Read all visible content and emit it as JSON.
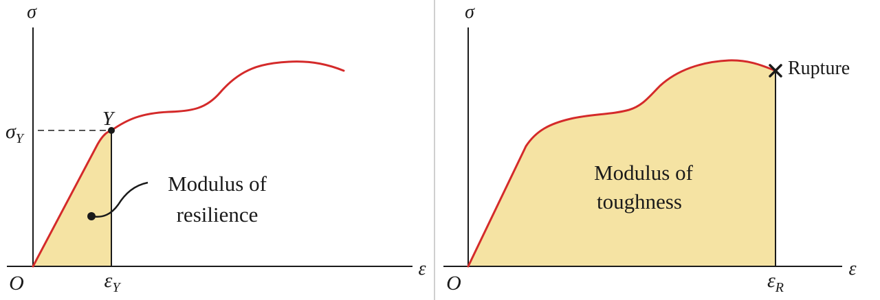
{
  "colors": {
    "curve": "#d42a2a",
    "fill": "#f5e3a3",
    "ink": "#1a1a1a",
    "divider": "#cfcfcf"
  },
  "left_panel": {
    "y_axis_label": "σ",
    "x_axis_label": "ε",
    "origin_label": "O",
    "yield_point_label": "Y",
    "yield_stress_label": {
      "base": "σ",
      "sub": "Y"
    },
    "yield_strain_label": {
      "base": "ε",
      "sub": "Y"
    },
    "area_label_line1": "Modulus of",
    "area_label_line2": "resilience"
  },
  "right_panel": {
    "y_axis_label": "σ",
    "x_axis_label": "ε",
    "origin_label": "O",
    "rupture_label": "Rupture",
    "rupture_strain_label": {
      "base": "ε",
      "sub": "R"
    },
    "area_label_line1": "Modulus of",
    "area_label_line2": "toughness"
  }
}
